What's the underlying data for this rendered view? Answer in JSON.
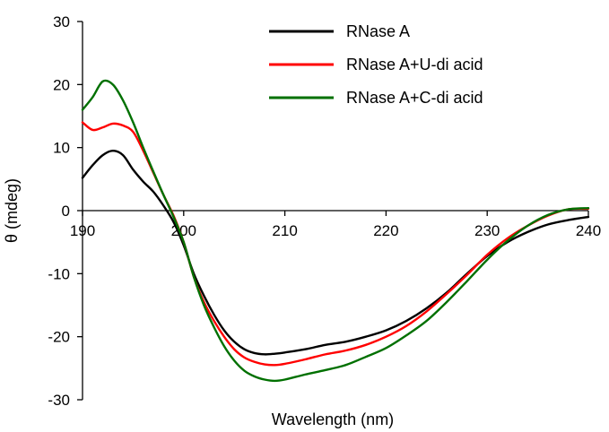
{
  "chart_data": {
    "type": "line",
    "xlabel": "Wavelength (nm)",
    "ylabel": "θ (mdeg)",
    "xlim": [
      190,
      240
    ],
    "ylim": [
      -30,
      30
    ],
    "x_ticks": [
      190,
      200,
      210,
      220,
      230,
      240
    ],
    "y_ticks": [
      30,
      20,
      10,
      0,
      -10,
      -20,
      -30
    ],
    "grid": false,
    "legend_position": "top-right",
    "series": [
      {
        "name": "RNase A",
        "color": "#000000",
        "x": [
          190,
          191,
          192,
          193,
          194,
          195,
          196,
          197,
          198,
          199,
          200,
          201,
          202,
          203,
          204,
          205,
          206,
          207,
          208,
          209,
          210,
          212,
          214,
          216,
          218,
          220,
          222,
          224,
          226,
          228,
          230,
          232,
          234,
          236,
          238,
          240
        ],
        "y": [
          5.2,
          7.2,
          8.8,
          9.5,
          8.8,
          6.5,
          4.6,
          3.0,
          0.8,
          -1.8,
          -5.5,
          -10.0,
          -13.5,
          -16.5,
          -19.0,
          -20.8,
          -22.0,
          -22.6,
          -22.8,
          -22.7,
          -22.5,
          -22.0,
          -21.3,
          -20.8,
          -20.0,
          -19.0,
          -17.5,
          -15.5,
          -13.0,
          -10.0,
          -7.2,
          -5.0,
          -3.4,
          -2.2,
          -1.5,
          -1.0
        ]
      },
      {
        "name": "RNase A+U-di acid",
        "color": "#ff0000",
        "x": [
          190,
          191,
          192,
          193,
          194,
          195,
          196,
          197,
          198,
          199,
          200,
          201,
          202,
          203,
          204,
          205,
          206,
          207,
          208,
          209,
          210,
          212,
          214,
          216,
          218,
          220,
          222,
          224,
          226,
          228,
          230,
          232,
          234,
          236,
          238,
          240
        ],
        "y": [
          14.0,
          12.8,
          13.2,
          13.8,
          13.5,
          12.5,
          9.5,
          6.0,
          2.5,
          -0.8,
          -5.0,
          -10.5,
          -14.5,
          -17.5,
          -20.0,
          -22.0,
          -23.3,
          -24.0,
          -24.4,
          -24.5,
          -24.3,
          -23.6,
          -22.8,
          -22.2,
          -21.3,
          -20.0,
          -18.3,
          -16.0,
          -13.2,
          -10.2,
          -7.0,
          -4.4,
          -2.4,
          -0.8,
          0.2,
          0.3
        ]
      },
      {
        "name": "RNase A+C-di acid",
        "color": "#007000",
        "x": [
          190,
          191,
          192,
          193,
          194,
          195,
          196,
          197,
          198,
          199,
          200,
          201,
          202,
          203,
          204,
          205,
          206,
          207,
          208,
          209,
          210,
          212,
          214,
          216,
          218,
          220,
          222,
          224,
          226,
          228,
          230,
          232,
          234,
          236,
          238,
          240
        ],
        "y": [
          16.0,
          18.0,
          20.5,
          20.0,
          17.5,
          14.0,
          10.0,
          6.2,
          2.5,
          -1.0,
          -5.0,
          -10.5,
          -15.0,
          -18.5,
          -21.5,
          -23.8,
          -25.4,
          -26.3,
          -26.8,
          -27.0,
          -26.8,
          -26.0,
          -25.3,
          -24.5,
          -23.2,
          -21.8,
          -19.8,
          -17.5,
          -14.5,
          -11.2,
          -7.8,
          -4.8,
          -2.4,
          -0.7,
          0.2,
          0.4
        ]
      }
    ]
  }
}
